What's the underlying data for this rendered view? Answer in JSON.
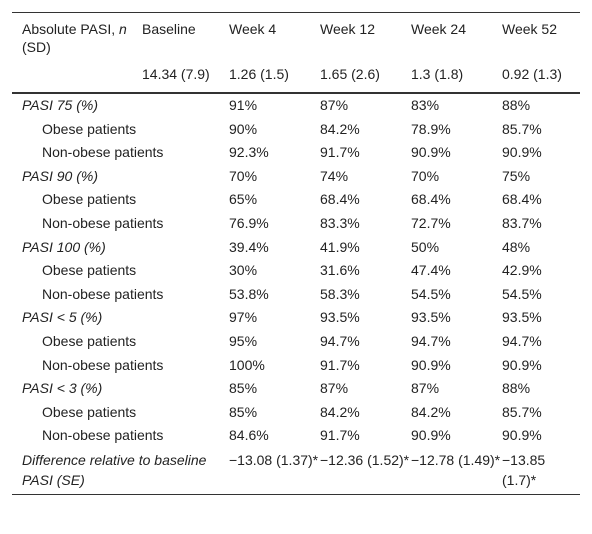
{
  "table": {
    "header": {
      "label": [
        "Absolute PASI, ",
        "n",
        " (SD)"
      ],
      "columns": [
        "Baseline",
        "Week 4",
        "Week 12",
        "Week 24",
        "Week 52"
      ]
    },
    "baseline_row": [
      "14.34 (7.9)",
      "1.26 (1.5)",
      "1.65 (2.6)",
      "1.3 (1.8)",
      "0.92 (1.3)"
    ],
    "groups": [
      {
        "label": "PASI 75 (%)",
        "values": [
          "91%",
          "87%",
          "83%",
          "88%"
        ],
        "rows": [
          {
            "label": "Obese patients",
            "values": [
              "90%",
              "84.2%",
              "78.9%",
              "85.7%"
            ]
          },
          {
            "label": "Non-obese patients",
            "values": [
              "92.3%",
              "91.7%",
              "90.9%",
              "90.9%"
            ]
          }
        ]
      },
      {
        "label": "PASI 90 (%)",
        "values": [
          "70%",
          "74%",
          "70%",
          "75%"
        ],
        "rows": [
          {
            "label": "Obese patients",
            "values": [
              "65%",
              "68.4%",
              "68.4%",
              "68.4%"
            ]
          },
          {
            "label": "Non-obese patients",
            "values": [
              "76.9%",
              "83.3%",
              "72.7%",
              "83.7%"
            ]
          }
        ]
      },
      {
        "label": "PASI 100 (%)",
        "values": [
          "39.4%",
          "41.9%",
          "50%",
          "48%"
        ],
        "rows": [
          {
            "label": "Obese patients",
            "values": [
              "30%",
              "31.6%",
              "47.4%",
              "42.9%"
            ]
          },
          {
            "label": "Non-obese patients",
            "values": [
              "53.8%",
              "58.3%",
              "54.5%",
              "54.5%"
            ]
          }
        ]
      },
      {
        "label": "PASI < 5 (%)",
        "values": [
          "97%",
          "93.5%",
          "93.5%",
          "93.5%"
        ],
        "rows": [
          {
            "label": "Obese patients",
            "values": [
              "95%",
              "94.7%",
              "94.7%",
              "94.7%"
            ]
          },
          {
            "label": "Non-obese patients",
            "values": [
              "100%",
              "91.7%",
              "90.9%",
              "90.9%"
            ]
          }
        ]
      },
      {
        "label": "PASI < 3 (%)",
        "values": [
          "85%",
          "87%",
          "87%",
          "88%"
        ],
        "rows": [
          {
            "label": "Obese patients",
            "values": [
              "85%",
              "84.2%",
              "84.2%",
              "85.7%"
            ]
          },
          {
            "label": "Non-obese patients",
            "values": [
              "84.6%",
              "91.7%",
              "90.9%",
              "90.9%"
            ]
          }
        ]
      }
    ],
    "difference_row": {
      "label": "Difference relative to baseline PASI (SE)",
      "values": [
        "−13.08 (1.37)*",
        "−12.36 (1.52)*",
        "−12.78 (1.49)*",
        "−13.85 (1.7)*"
      ]
    }
  }
}
